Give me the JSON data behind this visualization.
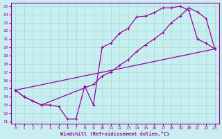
{
  "xlabel": "Windchill (Refroidissement éolien,°C)",
  "xlim": [
    -0.5,
    23.5
  ],
  "ylim": [
    10.7,
    25.4
  ],
  "xticks": [
    0,
    1,
    2,
    3,
    4,
    5,
    6,
    7,
    8,
    9,
    10,
    11,
    12,
    13,
    14,
    15,
    16,
    17,
    18,
    19,
    20,
    21,
    22,
    23
  ],
  "yticks": [
    11,
    12,
    13,
    14,
    15,
    16,
    17,
    18,
    19,
    20,
    21,
    22,
    23,
    24,
    25
  ],
  "bg_color": "#c8eef0",
  "line_color": "#990099",
  "grid_color": "#aadddd",
  "line1_x": [
    0,
    1,
    2,
    3,
    4,
    5,
    6,
    7,
    8,
    9,
    10,
    11,
    12,
    13,
    14,
    15,
    16,
    17,
    18,
    19,
    20,
    21,
    22,
    23
  ],
  "line1_y": [
    14.8,
    14.0,
    13.5,
    13.0,
    13.0,
    12.8,
    11.3,
    11.3,
    15.3,
    13.0,
    20.0,
    20.5,
    21.7,
    22.3,
    23.7,
    23.8,
    24.2,
    24.8,
    24.8,
    25.0,
    24.5,
    21.0,
    20.5,
    19.8
  ],
  "line2_x": [
    0,
    1,
    2,
    3,
    9,
    10,
    11,
    12,
    13,
    14,
    15,
    16,
    17,
    18,
    19,
    20,
    21,
    22,
    23
  ],
  "line2_y": [
    14.8,
    14.0,
    13.5,
    13.0,
    15.5,
    16.5,
    17.0,
    17.8,
    18.5,
    19.5,
    20.3,
    21.0,
    21.8,
    23.0,
    23.8,
    24.8,
    24.3,
    23.5,
    19.8
  ],
  "line3_x": [
    0,
    23
  ],
  "line3_y": [
    14.8,
    19.8
  ]
}
